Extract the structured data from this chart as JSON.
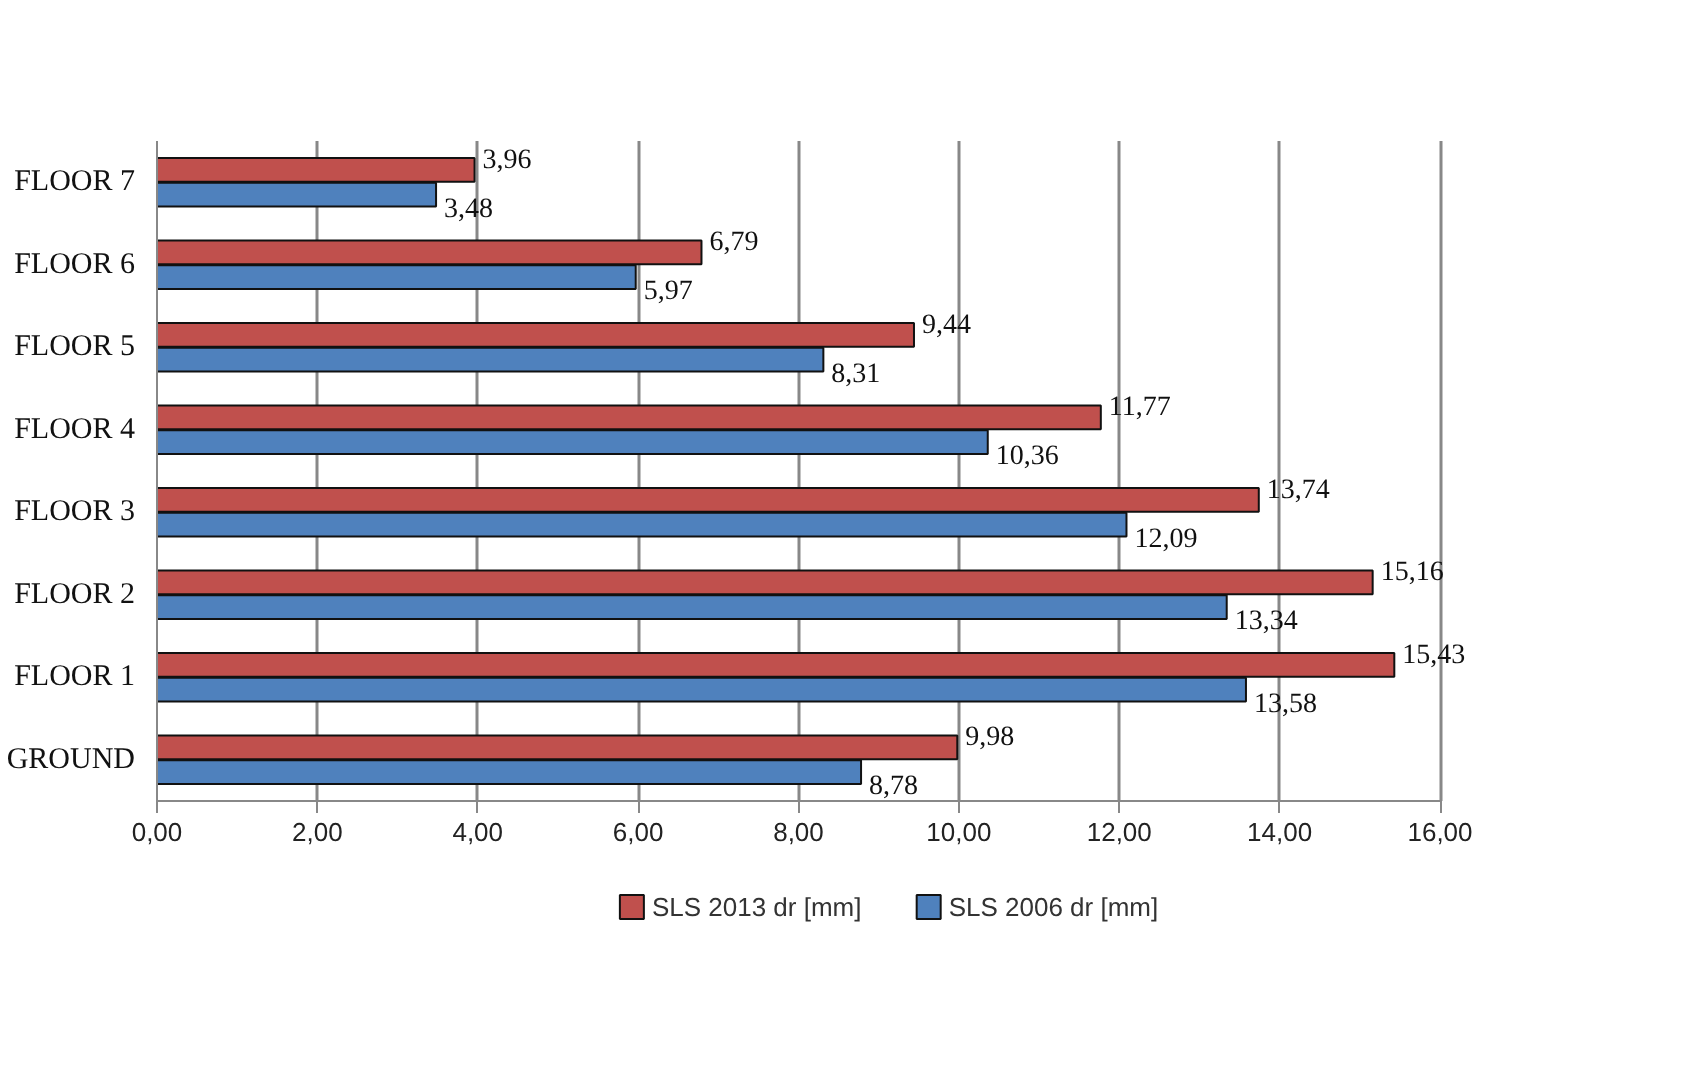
{
  "chart_data": {
    "type": "bar",
    "orientation": "horizontal",
    "categories": [
      "FLOOR 7",
      "FLOOR 6",
      "FLOOR 5",
      "FLOOR 4",
      "FLOOR 3",
      "FLOOR 2",
      "FLOOR 1",
      "GROUND"
    ],
    "series": [
      {
        "name": "SLS 2013 dr [mm]",
        "color": "#c0504d",
        "values": [
          3.96,
          6.79,
          9.44,
          11.77,
          13.74,
          15.16,
          15.43,
          9.98
        ],
        "value_labels": [
          "3,96",
          "6,79",
          "9,44",
          "11,77",
          "13,74",
          "15,16",
          "15,43",
          "9,98"
        ]
      },
      {
        "name": "SLS 2006 dr [mm]",
        "color": "#4f81bd",
        "values": [
          3.48,
          5.97,
          8.31,
          10.36,
          12.09,
          13.34,
          13.58,
          8.78
        ],
        "value_labels": [
          "3,48",
          "5,97",
          "8,31",
          "10,36",
          "12,09",
          "13,34",
          "13,58",
          "8,78"
        ]
      }
    ],
    "xlim": [
      0,
      16
    ],
    "xticks": [
      {
        "value": 0,
        "label": "0,00"
      },
      {
        "value": 2,
        "label": "2,00"
      },
      {
        "value": 4,
        "label": "4,00"
      },
      {
        "value": 6,
        "label": "6,00"
      },
      {
        "value": 8,
        "label": "8,00"
      },
      {
        "value": 10,
        "label": "10,00"
      },
      {
        "value": 12,
        "label": "12,00"
      },
      {
        "value": 14,
        "label": "14,00"
      },
      {
        "value": 16,
        "label": "16,00"
      }
    ],
    "grid": "x",
    "legend": "bottom"
  }
}
